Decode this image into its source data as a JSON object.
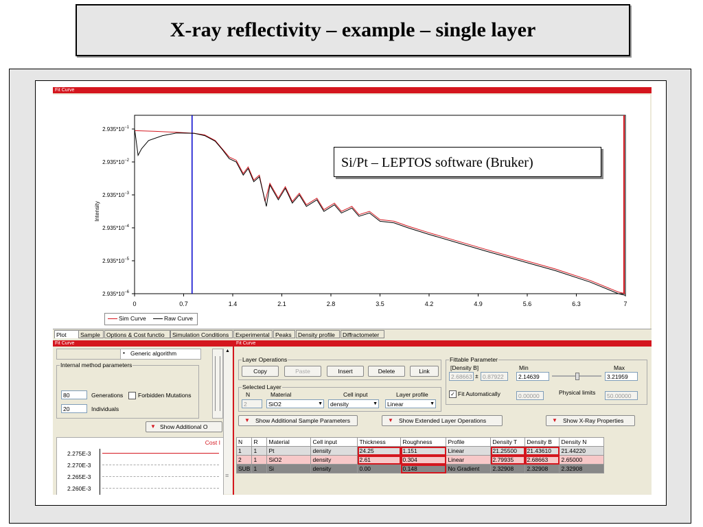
{
  "slide": {
    "title": "X-ray reflectivity – example – single layer",
    "callout": "Si/Pt – LEPTOS software (Bruker)"
  },
  "app": {
    "title_bar": "Fit Curve",
    "left_title": "Fit Curve",
    "right_title": "Fit Curve"
  },
  "chart_data": {
    "type": "line",
    "ylabel": "Intensity",
    "yscale": "log",
    "xlim": [
      0,
      7
    ],
    "x_ticks": [
      "0",
      "0.7",
      "1.4",
      "2.1",
      "2.8",
      "3.5",
      "4.2",
      "4.9",
      "5.6",
      "6.3",
      "7"
    ],
    "y_ticks": [
      {
        "mant": "2.935*10",
        "exp": "−1"
      },
      {
        "mant": "2.935*10",
        "exp": "−2"
      },
      {
        "mant": "2.935*10",
        "exp": "−3"
      },
      {
        "mant": "2.935*10",
        "exp": "−4"
      },
      {
        "mant": "2.935*10",
        "exp": "−5"
      },
      {
        "mant": "2.935*10",
        "exp": "−6"
      }
    ],
    "legend": [
      "Sim Curve",
      "Raw Curve"
    ],
    "colors": {
      "sim": "#d4161e",
      "raw": "#000000",
      "cursor": "#0000cc"
    },
    "cursors": {
      "blue_x": 0.82,
      "red_x": 6.98
    },
    "series": [
      {
        "name": "Sim Curve",
        "color": "#d4161e",
        "x": [
          0.0,
          0.3,
          0.6,
          0.85,
          1.0,
          1.15,
          1.25,
          1.35,
          1.45,
          1.55,
          1.62,
          1.7,
          1.78,
          1.86,
          1.93,
          2.05,
          2.15,
          2.25,
          2.35,
          2.45,
          2.6,
          2.7,
          2.85,
          2.95,
          3.1,
          3.2,
          3.35,
          3.5,
          3.7,
          3.9,
          4.2,
          4.6,
          5.0,
          5.5,
          6.0,
          6.5,
          6.9,
          7.0
        ],
        "y": [
          -1.05,
          -1.07,
          -1.1,
          -1.13,
          -1.18,
          -1.35,
          -1.6,
          -1.85,
          -1.95,
          -2.35,
          -2.15,
          -2.55,
          -2.4,
          -3.2,
          -2.65,
          -3.1,
          -2.75,
          -3.2,
          -2.95,
          -3.3,
          -3.1,
          -3.45,
          -3.25,
          -3.5,
          -3.35,
          -3.6,
          -3.5,
          -3.75,
          -3.8,
          -3.95,
          -4.15,
          -4.4,
          -4.65,
          -4.95,
          -5.25,
          -5.6,
          -5.95,
          -6.0
        ]
      },
      {
        "name": "Raw Curve",
        "color": "#000000",
        "x": [
          0.0,
          0.02,
          0.05,
          0.1,
          0.2,
          0.4,
          0.6,
          0.85,
          1.0,
          1.15,
          1.25,
          1.35,
          1.45,
          1.55,
          1.62,
          1.7,
          1.78,
          1.88,
          1.93,
          2.05,
          2.15,
          2.25,
          2.35,
          2.45,
          2.6,
          2.7,
          2.85,
          2.95,
          3.1,
          3.2,
          3.35,
          3.5,
          3.7,
          3.9,
          4.2,
          4.6,
          5.0,
          5.5,
          6.0,
          6.5,
          6.9,
          7.0
        ],
        "y": [
          -1.0,
          -1.3,
          -1.8,
          -1.6,
          -1.35,
          -1.2,
          -1.12,
          -1.13,
          -1.2,
          -1.37,
          -1.62,
          -1.9,
          -2.0,
          -2.4,
          -2.2,
          -2.6,
          -2.45,
          -3.35,
          -2.7,
          -3.15,
          -2.8,
          -3.25,
          -3.0,
          -3.35,
          -3.15,
          -3.5,
          -3.3,
          -3.55,
          -3.4,
          -3.65,
          -3.55,
          -3.8,
          -3.85,
          -4.0,
          -4.2,
          -4.45,
          -4.7,
          -5.0,
          -5.3,
          -5.65,
          -6.0,
          -6.05
        ]
      }
    ]
  },
  "tabs": [
    "Plot",
    "Sample",
    "Options & Cost functio",
    "Simulation Conditions",
    "Experimental",
    "Peaks",
    "Density profile",
    "Diffractometer"
  ],
  "left": {
    "algorithm_label": "Generic algorithm",
    "group_label": "Internal method parameters",
    "generations_value": "80",
    "generations_label": "Generations",
    "forbidden_label": "Forbidden Mutations",
    "individuals_value": "20",
    "individuals_label": "Individuals",
    "show_additional": "Show Additional O",
    "cost_label": "Cost I",
    "cost_ticks": [
      "2.275E-3",
      "2.270E-3",
      "2.265E-3",
      "2.260E-3"
    ]
  },
  "layer_ops": {
    "title": "Layer Operations",
    "copy": "Copy",
    "paste": "Paste",
    "insert": "Insert",
    "delete": "Delete",
    "link": "Link"
  },
  "selected_layer": {
    "title": "Selected Layer",
    "n_header": "N",
    "material_header": "Material",
    "cell_input_header": "Cell input",
    "layer_profile_header": "Layer profile",
    "n_value": "2",
    "material_value": "SiO2",
    "cell_input_value": "density",
    "layer_profile_value": "Linear"
  },
  "fittable": {
    "title": "Fittable Parameter",
    "param_name": "[Density B]",
    "min_header": "Min",
    "max_header": "Max",
    "value": "2.68663",
    "pm": "±",
    "error": "0.87922",
    "min_value": "2.14639",
    "max_value": "3.21959",
    "fit_auto_label": "Fit Automatically",
    "fit_auto_value": "0.00000",
    "physical_limits_label": "Physical limits",
    "physical_limits_value": "50.00000"
  },
  "buttons": {
    "add_sample": "Show Additional Sample Parameters",
    "ext_layer": "Show Extended Layer Operations",
    "xray_props": "Show X-Ray Properties"
  },
  "table": {
    "headers": [
      "N",
      "R",
      "Material",
      "Cell input",
      "Thickness",
      "Roughness",
      "Profile",
      "Density T",
      "Density B",
      "Density N"
    ],
    "rows": [
      [
        "1",
        "1",
        "Pt",
        "density",
        "24.25",
        "1.151",
        "Linear",
        "21.25500",
        "21.43610",
        "21.44220"
      ],
      [
        "2",
        "1",
        "SiO2",
        "density",
        "2.61",
        "0.304",
        "Linear",
        "2.79935",
        "2.68663",
        "2.65000"
      ],
      [
        "SUB",
        "1",
        "Si",
        "density",
        "0.00",
        "0.148",
        "No Gradient",
        "2.32908",
        "2.32908",
        "2.32908"
      ]
    ]
  }
}
